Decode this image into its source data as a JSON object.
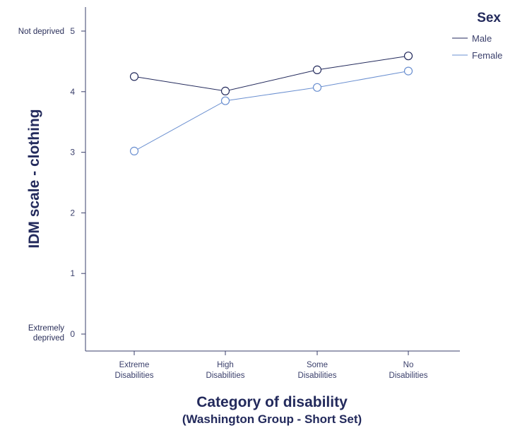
{
  "chart_data": {
    "type": "line",
    "title": "",
    "xlabel": "Category of disability",
    "xlabel_sub": "(Washington Group - Short Set)",
    "ylabel": "IDM scale - clothing",
    "ylim": [
      0,
      5
    ],
    "yticks": [
      0,
      1,
      2,
      3,
      4,
      5
    ],
    "y_anchor_labels": {
      "top": "Not deprived",
      "bottom_line1": "Extremely",
      "bottom_line2": "deprived"
    },
    "categories": [
      [
        "Extreme",
        "Disabilities"
      ],
      [
        "High",
        "Disabilities"
      ],
      [
        "Some",
        "Disabilities"
      ],
      [
        "No",
        "Disabilities"
      ]
    ],
    "legend": {
      "title": "Sex",
      "position": "top-right"
    },
    "grid": false,
    "series": [
      {
        "name": "Male",
        "color": "#232a5c",
        "values": [
          4.25,
          4.01,
          4.36,
          4.59
        ]
      },
      {
        "name": "Female",
        "color": "#6a8fd0",
        "values": [
          3.02,
          3.85,
          4.07,
          4.34
        ]
      }
    ]
  }
}
